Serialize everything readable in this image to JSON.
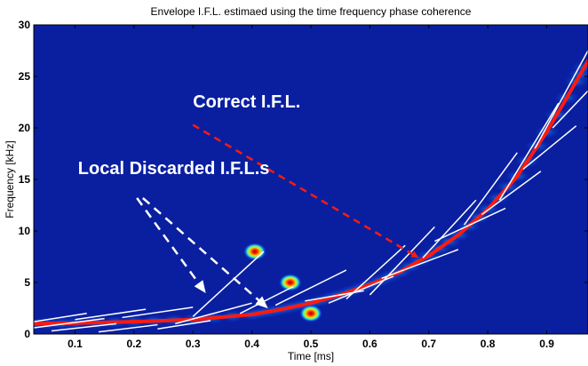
{
  "chart_data": {
    "type": "heatmap",
    "title": "Envelope I.F.L. estimaed using the time frequency phase coherence",
    "xlabel": "Time [ms]",
    "ylabel": "Frequency [kHz]",
    "xlim": [
      0.03,
      0.97
    ],
    "ylim": [
      0,
      30
    ],
    "x_ticks": [
      0.1,
      0.2,
      0.3,
      0.4,
      0.5,
      0.6,
      0.7,
      0.8,
      0.9
    ],
    "x_tick_labels": [
      "0.1",
      "0.2",
      "0.3",
      "0.4",
      "0.5",
      "0.6",
      "0.7",
      "0.8",
      "0.9"
    ],
    "y_ticks": [
      0,
      5,
      10,
      15,
      20,
      25,
      30
    ],
    "y_tick_labels": [
      "0",
      "5",
      "10",
      "15",
      "20",
      "25",
      "30"
    ],
    "grid": false,
    "colormap": "jet",
    "background_color": "#0a1fa0",
    "correct_ifl": {
      "color": "#ff1a10",
      "x": [
        0.03,
        0.1,
        0.2,
        0.3,
        0.4,
        0.45,
        0.5,
        0.55,
        0.6,
        0.65,
        0.7,
        0.75,
        0.8,
        0.85,
        0.9,
        0.95,
        0.97
      ],
      "y": [
        1.0,
        1.05,
        1.2,
        1.4,
        1.9,
        2.4,
        3.0,
        3.8,
        4.8,
        6.0,
        7.6,
        9.6,
        12.1,
        15.3,
        19.6,
        24.5,
        26.5
      ]
    },
    "local_ifls": {
      "color": "#ffffff",
      "segments": [
        {
          "x": [
            0.03,
            0.15
          ],
          "y": [
            0.6,
            1.5
          ]
        },
        {
          "x": [
            0.03,
            0.12
          ],
          "y": [
            1.2,
            2.0
          ]
        },
        {
          "x": [
            0.06,
            0.17
          ],
          "y": [
            0.3,
            1.0
          ]
        },
        {
          "x": [
            0.1,
            0.22
          ],
          "y": [
            1.4,
            2.4
          ]
        },
        {
          "x": [
            0.14,
            0.24
          ],
          "y": [
            0.2,
            0.9
          ]
        },
        {
          "x": [
            0.18,
            0.3
          ],
          "y": [
            1.6,
            2.6
          ]
        },
        {
          "x": [
            0.24,
            0.33
          ],
          "y": [
            0.5,
            1.3
          ]
        },
        {
          "x": [
            0.27,
            0.4
          ],
          "y": [
            1.0,
            3.0
          ]
        },
        {
          "x": [
            0.3,
            0.42
          ],
          "y": [
            1.7,
            8.0
          ]
        },
        {
          "x": [
            0.38,
            0.47
          ],
          "y": [
            2.0,
            4.6
          ]
        },
        {
          "x": [
            0.44,
            0.56
          ],
          "y": [
            2.8,
            6.2
          ]
        },
        {
          "x": [
            0.49,
            0.59
          ],
          "y": [
            3.2,
            4.2
          ]
        },
        {
          "x": [
            0.53,
            0.64
          ],
          "y": [
            3.0,
            5.6
          ]
        },
        {
          "x": [
            0.56,
            0.66
          ],
          "y": [
            3.4,
            8.6
          ]
        },
        {
          "x": [
            0.6,
            0.71
          ],
          "y": [
            3.8,
            10.4
          ]
        },
        {
          "x": [
            0.62,
            0.75
          ],
          "y": [
            5.4,
            8.2
          ]
        },
        {
          "x": [
            0.69,
            0.78
          ],
          "y": [
            7.4,
            13.0
          ]
        },
        {
          "x": [
            0.71,
            0.83
          ],
          "y": [
            9.0,
            12.2
          ]
        },
        {
          "x": [
            0.76,
            0.85
          ],
          "y": [
            10.6,
            17.6
          ]
        },
        {
          "x": [
            0.79,
            0.89
          ],
          "y": [
            11.6,
            15.8
          ]
        },
        {
          "x": [
            0.82,
            0.92
          ],
          "y": [
            13.0,
            22.4
          ]
        },
        {
          "x": [
            0.86,
            0.95
          ],
          "y": [
            16.0,
            20.2
          ]
        },
        {
          "x": [
            0.88,
            0.97
          ],
          "y": [
            18.0,
            27.5
          ]
        },
        {
          "x": [
            0.91,
            0.97
          ],
          "y": [
            20.0,
            23.6
          ]
        }
      ]
    },
    "hotspots": [
      {
        "x": 0.405,
        "y": 8.0
      },
      {
        "x": 0.465,
        "y": 5.0
      },
      {
        "x": 0.5,
        "y": 2.0
      }
    ],
    "annotations": [
      {
        "text": "Correct I.F.L.",
        "x": 0.3,
        "y": 22.0,
        "color": "#ffffff"
      },
      {
        "text": "Local Discarded I.F.L.s",
        "x": 0.105,
        "y": 15.5,
        "color": "#ffffff"
      }
    ],
    "arrows": [
      {
        "from": [
          0.3,
          20.3
        ],
        "to": [
          0.68,
          7.5
        ],
        "color": "#ff1a10",
        "style": "dashed"
      },
      {
        "from": [
          0.205,
          13.2
        ],
        "to": [
          0.32,
          4.1
        ],
        "color": "#ffffff",
        "style": "dashed"
      },
      {
        "from": [
          0.215,
          13.2
        ],
        "to": [
          0.425,
          2.6
        ],
        "color": "#ffffff",
        "style": "dashed"
      }
    ]
  }
}
